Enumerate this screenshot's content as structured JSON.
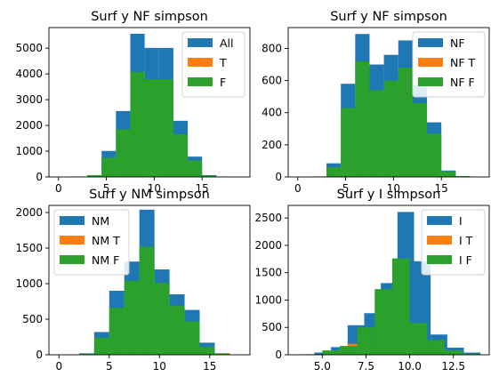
{
  "colors": {
    "blue": "#1f77b4",
    "orange": "#ff7f0e",
    "green": "#2ca02c"
  },
  "chart_data": [
    {
      "type": "bar",
      "title": "Surf y NF simpson",
      "xlim": [
        -1,
        20
      ],
      "ylim": [
        0,
        5800
      ],
      "xticks": [
        0,
        5,
        10,
        15
      ],
      "yticks": [
        0,
        1000,
        2000,
        3000,
        4000,
        5000
      ],
      "legend": "top-right",
      "series": [
        {
          "name": "All",
          "color": "#1f77b4",
          "bins": [
            [
              1.5,
              3.0,
              10
            ],
            [
              3.0,
              4.5,
              55
            ],
            [
              4.5,
              6.0,
              1010
            ],
            [
              6.0,
              7.5,
              2560
            ],
            [
              7.5,
              9.0,
              5560
            ],
            [
              9.0,
              10.5,
              5010
            ],
            [
              10.5,
              12.0,
              5010
            ],
            [
              12.0,
              13.5,
              2180
            ],
            [
              13.5,
              15.0,
              790
            ],
            [
              15.0,
              16.5,
              70
            ],
            [
              16.5,
              18.0,
              10
            ]
          ]
        },
        {
          "name": "T",
          "color": "#ff7f0e",
          "bins": [
            [
              4.5,
              6.0,
              20
            ],
            [
              6.0,
              7.5,
              25
            ],
            [
              7.5,
              9.0,
              15
            ],
            [
              9.0,
              10.5,
              10
            ]
          ]
        },
        {
          "name": "F",
          "color": "#2ca02c",
          "bins": [
            [
              1.5,
              3.0,
              10
            ],
            [
              3.0,
              4.5,
              70
            ],
            [
              4.5,
              6.0,
              750
            ],
            [
              6.0,
              7.5,
              1850
            ],
            [
              7.5,
              9.0,
              4080
            ],
            [
              9.0,
              10.5,
              3800
            ],
            [
              10.5,
              12.0,
              3800
            ],
            [
              12.0,
              13.5,
              1660
            ],
            [
              13.5,
              15.0,
              640
            ],
            [
              15.0,
              16.5,
              60
            ],
            [
              16.5,
              18.0,
              10
            ]
          ]
        }
      ]
    },
    {
      "type": "bar",
      "title": "Surf y NF simpson",
      "xlim": [
        -1,
        20
      ],
      "ylim": [
        0,
        930
      ],
      "xticks": [
        0,
        5,
        10,
        15
      ],
      "yticks": [
        0,
        200,
        400,
        600,
        800
      ],
      "legend": "top-right",
      "series": [
        {
          "name": "NF",
          "color": "#1f77b4",
          "bins": [
            [
              1.5,
              3.0,
              3
            ],
            [
              3.0,
              4.5,
              85
            ],
            [
              4.5,
              6.0,
              580
            ],
            [
              6.0,
              7.5,
              890
            ],
            [
              7.5,
              9.0,
              700
            ],
            [
              9.0,
              10.5,
              760
            ],
            [
              10.5,
              12.0,
              850
            ],
            [
              12.0,
              13.5,
              570
            ],
            [
              13.5,
              15.0,
              340
            ],
            [
              15.0,
              16.5,
              40
            ],
            [
              16.5,
              18.0,
              5
            ]
          ]
        },
        {
          "name": "NF T",
          "color": "#ff7f0e",
          "bins": [
            [
              3.0,
              4.5,
              30
            ],
            [
              4.5,
              6.0,
              100
            ],
            [
              6.0,
              7.5,
              40
            ],
            [
              7.5,
              9.0,
              25
            ]
          ]
        },
        {
          "name": "NF F",
          "color": "#2ca02c",
          "bins": [
            [
              1.5,
              3.0,
              3
            ],
            [
              3.0,
              4.5,
              60
            ],
            [
              4.5,
              6.0,
              430
            ],
            [
              6.0,
              7.5,
              720
            ],
            [
              7.5,
              9.0,
              540
            ],
            [
              9.0,
              10.5,
              600
            ],
            [
              10.5,
              12.0,
              680
            ],
            [
              12.0,
              13.5,
              460
            ],
            [
              13.5,
              15.0,
              270
            ],
            [
              15.0,
              16.5,
              35
            ],
            [
              16.5,
              18.0,
              5
            ]
          ]
        }
      ]
    },
    {
      "type": "bar",
      "title": "Surf y NM simpson",
      "xlim": [
        -1,
        19
      ],
      "ylim": [
        0,
        2100
      ],
      "xticks": [
        0,
        5,
        10,
        15
      ],
      "yticks": [
        0,
        500,
        1000,
        1500,
        2000
      ],
      "legend": "top-left",
      "series": [
        {
          "name": "NM",
          "color": "#1f77b4",
          "bins": [
            [
              2.0,
              3.5,
              20
            ],
            [
              3.5,
              5.0,
              320
            ],
            [
              5.0,
              6.5,
              900
            ],
            [
              6.5,
              8.0,
              1310
            ],
            [
              8.0,
              9.5,
              2040
            ],
            [
              9.5,
              11.0,
              1200
            ],
            [
              11.0,
              12.5,
              850
            ],
            [
              12.5,
              14.0,
              630
            ],
            [
              14.0,
              15.5,
              170
            ],
            [
              15.5,
              17.0,
              20
            ]
          ]
        },
        {
          "name": "NM T",
          "color": "#ff7f0e",
          "bins": [
            [
              15.5,
              17.0,
              25
            ]
          ]
        },
        {
          "name": "NM F",
          "color": "#2ca02c",
          "bins": [
            [
              2.0,
              3.5,
              15
            ],
            [
              3.5,
              5.0,
              240
            ],
            [
              5.0,
              6.5,
              660
            ],
            [
              6.5,
              8.0,
              1040
            ],
            [
              8.0,
              9.5,
              1520
            ],
            [
              9.5,
              11.0,
              1010
            ],
            [
              11.0,
              12.5,
              690
            ],
            [
              12.5,
              14.0,
              470
            ],
            [
              14.0,
              15.5,
              110
            ],
            [
              15.5,
              17.0,
              10
            ]
          ]
        }
      ]
    },
    {
      "type": "bar",
      "title": "Surf y I simpson",
      "xlim": [
        3.05,
        14.55
      ],
      "ylim": [
        0,
        2730
      ],
      "xticks": [
        5.0,
        7.5,
        10.0,
        12.5
      ],
      "yticks": [
        0,
        500,
        1000,
        1500,
        2000,
        2500
      ],
      "xtick_labels": [
        "5.0",
        "7.5",
        "10.0",
        "12.5"
      ],
      "legend": "top-right",
      "series": [
        {
          "name": "I",
          "color": "#1f77b4",
          "bins": [
            [
              3.6,
              4.55,
              5
            ],
            [
              4.55,
              5.5,
              40
            ],
            [
              5.5,
              6.45,
              140
            ],
            [
              6.45,
              7.4,
              540
            ],
            [
              7.4,
              8.35,
              760
            ],
            [
              8.35,
              9.3,
              1310
            ],
            [
              9.3,
              10.25,
              2610
            ],
            [
              10.25,
              11.2,
              1710
            ],
            [
              11.2,
              12.15,
              370
            ],
            [
              12.15,
              13.1,
              130
            ],
            [
              13.1,
              14.05,
              40
            ]
          ]
        },
        {
          "name": "I T",
          "color": "#ff7f0e",
          "bins": [
            [
              6.45,
              7.4,
              200
            ],
            [
              7.4,
              8.35,
              10
            ]
          ]
        },
        {
          "name": "I F",
          "color": "#2ca02c",
          "bins": [
            [
              4.0,
              5.0,
              10
            ],
            [
              5.0,
              6.0,
              80
            ],
            [
              6.0,
              7.0,
              160
            ],
            [
              7.0,
              8.0,
              500
            ],
            [
              8.0,
              9.0,
              1200
            ],
            [
              9.0,
              10.0,
              1760
            ],
            [
              10.0,
              11.0,
              580
            ],
            [
              11.0,
              12.0,
              270
            ],
            [
              12.0,
              13.0,
              80
            ],
            [
              13.0,
              14.0,
              20
            ]
          ]
        }
      ]
    }
  ]
}
